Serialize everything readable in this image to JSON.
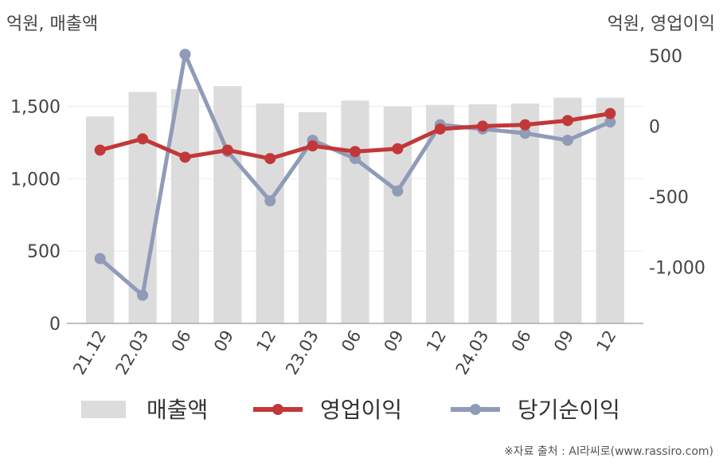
{
  "chart_data": {
    "type": "bar+line",
    "left_axis_label": "억원, 매출액",
    "right_axis_label": "억원, 영업이익",
    "categories": [
      "21.12",
      "22.03",
      "06",
      "09",
      "12",
      "23.03",
      "06",
      "09",
      "12",
      "24.03",
      "06",
      "09",
      "12"
    ],
    "left_ylim": [
      0,
      1850
    ],
    "right_ylim": [
      -1400,
      500
    ],
    "left_ticks": [
      0,
      500,
      1000,
      1500
    ],
    "left_tick_labels": [
      "0",
      "500",
      "1,000",
      "1,500"
    ],
    "right_ticks": [
      500,
      0,
      -500,
      -1000
    ],
    "right_tick_labels": [
      "500",
      "0",
      "-500",
      "-1,000"
    ],
    "grid": true,
    "series": [
      {
        "name": "매출액",
        "type": "bar",
        "axis": "left",
        "color": "#dcdcdc",
        "values": [
          1430,
          1600,
          1620,
          1640,
          1520,
          1460,
          1540,
          1500,
          1510,
          1515,
          1520,
          1560,
          1560
        ]
      },
      {
        "name": "영업이익",
        "type": "line",
        "axis": "right",
        "color": "#c23838",
        "values": [
          -170,
          -90,
          -220,
          -170,
          -230,
          -140,
          -180,
          -160,
          -20,
          0,
          10,
          40,
          90
        ]
      },
      {
        "name": "당기순이익",
        "type": "line",
        "axis": "right",
        "color": "#8f9bb8",
        "values": [
          -940,
          -1200,
          510,
          -180,
          -530,
          -100,
          -230,
          -460,
          10,
          -20,
          -50,
          -100,
          30
        ]
      }
    ],
    "legend_position": "bottom",
    "source_note": "※자료 출처 : AI라씨로(www.rassiro.com)"
  }
}
